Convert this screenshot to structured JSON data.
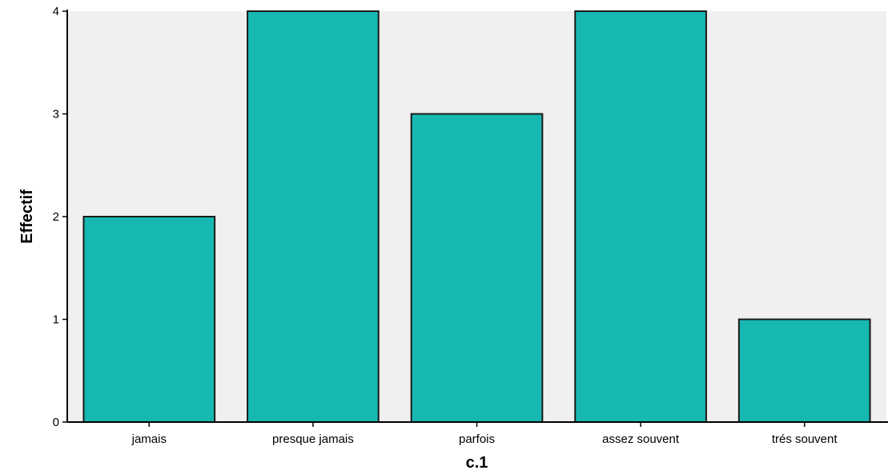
{
  "chart_data": {
    "type": "bar",
    "categories": [
      "jamais",
      "presque jamais",
      "parfois",
      "assez souvent",
      "trés souvent"
    ],
    "values": [
      2,
      4,
      3,
      4,
      1
    ],
    "xlabel": "c.1",
    "ylabel": "Effectif",
    "ylim": [
      0,
      4
    ],
    "yticks": [
      "0",
      "1",
      "2",
      "3",
      "4"
    ],
    "grid": false,
    "legend": "none",
    "colors": {
      "bar_fill": "#17b8b1",
      "bar_stroke": "#1a1a1a",
      "plot_background": "#f0f0f0",
      "axis": "#000000"
    }
  }
}
